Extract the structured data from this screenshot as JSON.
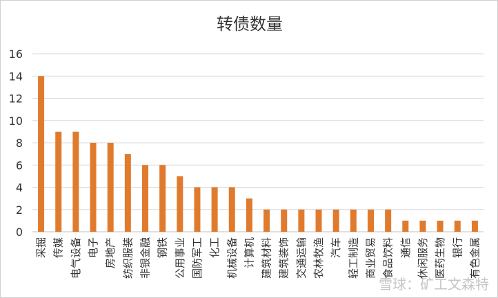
{
  "watermark": "雪球：矿工文森特",
  "chart_data": {
    "type": "bar",
    "title": "转债数量",
    "xlabel": "",
    "ylabel": "",
    "ylim": [
      0,
      16
    ],
    "yticks": [
      0,
      2,
      4,
      6,
      8,
      10,
      12,
      14,
      16
    ],
    "grid": true,
    "legend": "none",
    "bar_color": "#E07B2E",
    "grid_color": "#d9d9d9",
    "categories": [
      "采掘",
      "传媒",
      "电气设备",
      "电子",
      "房地产",
      "纺织服装",
      "非银金融",
      "钢铁",
      "公用事业",
      "国防军工",
      "化工",
      "机械设备",
      "计算机",
      "建筑材料",
      "建筑装饰",
      "交通运输",
      "农林牧渔",
      "汽车",
      "轻工制造",
      "商业贸易",
      "食品饮料",
      "通信",
      "休闲服务",
      "医药生物",
      "银行",
      "有色金属"
    ],
    "values": [
      14,
      9,
      9,
      8,
      8,
      7,
      6,
      6,
      5,
      4,
      4,
      4,
      3,
      2,
      2,
      2,
      2,
      2,
      2,
      2,
      2,
      1,
      1,
      1,
      1,
      1
    ]
  }
}
